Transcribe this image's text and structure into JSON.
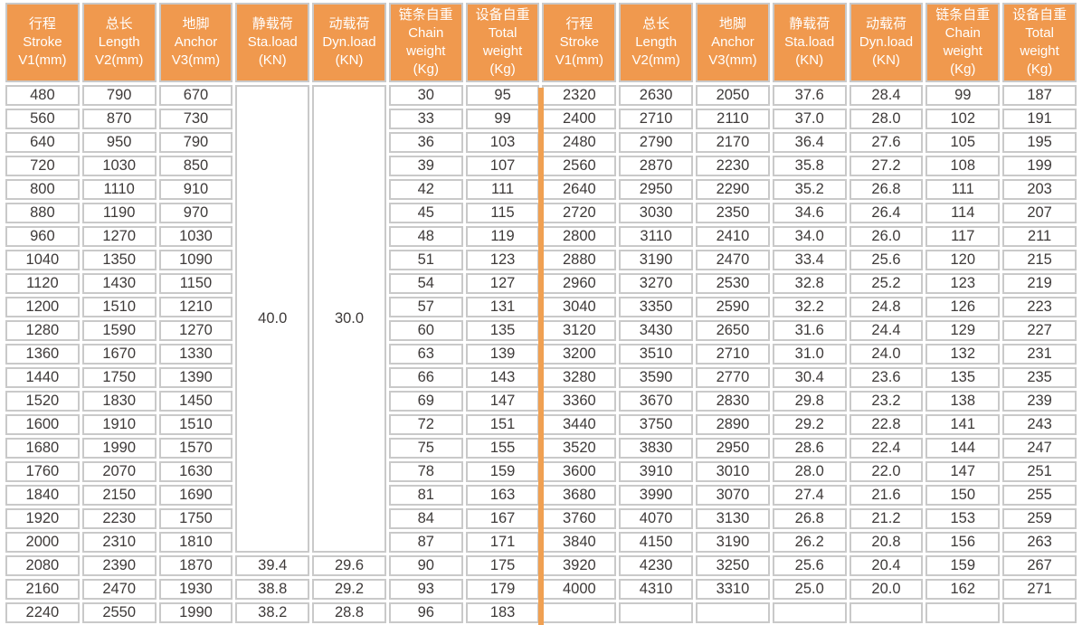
{
  "table": {
    "columns": [
      {
        "name": "stroke",
        "lines": [
          "行程",
          "Stroke",
          "V1(mm)"
        ]
      },
      {
        "name": "length",
        "lines": [
          "总长",
          "Length",
          "V2(mm)"
        ]
      },
      {
        "name": "anchor",
        "lines": [
          "地脚",
          "Anchor",
          "V3(mm)"
        ]
      },
      {
        "name": "static-load",
        "lines": [
          "静载荷",
          "Sta.load",
          "(KN)"
        ]
      },
      {
        "name": "dynamic-load",
        "lines": [
          "动载荷",
          "Dyn.load",
          "(KN)"
        ]
      },
      {
        "name": "chain-weight",
        "lines": [
          "链条自重",
          "Chain",
          "weight",
          "(Kg)"
        ]
      },
      {
        "name": "total-weight",
        "lines": [
          "设备自重",
          "Total",
          "weight",
          "(Kg)"
        ]
      }
    ],
    "left_merged": {
      "sta": "40.0",
      "dyn": "30.0",
      "rowspan": 20
    },
    "left_rows": [
      [
        "480",
        "790",
        "670",
        "",
        "",
        "30",
        "95"
      ],
      [
        "560",
        "870",
        "730",
        "",
        "",
        "33",
        "99"
      ],
      [
        "640",
        "950",
        "790",
        "",
        "",
        "36",
        "103"
      ],
      [
        "720",
        "1030",
        "850",
        "",
        "",
        "39",
        "107"
      ],
      [
        "800",
        "1110",
        "910",
        "",
        "",
        "42",
        "111"
      ],
      [
        "880",
        "1190",
        "970",
        "",
        "",
        "45",
        "115"
      ],
      [
        "960",
        "1270",
        "1030",
        "",
        "",
        "48",
        "119"
      ],
      [
        "1040",
        "1350",
        "1090",
        "",
        "",
        "51",
        "123"
      ],
      [
        "1120",
        "1430",
        "1150",
        "",
        "",
        "54",
        "127"
      ],
      [
        "1200",
        "1510",
        "1210",
        "",
        "",
        "57",
        "131"
      ],
      [
        "1280",
        "1590",
        "1270",
        "",
        "",
        "60",
        "135"
      ],
      [
        "1360",
        "1670",
        "1330",
        "",
        "",
        "63",
        "139"
      ],
      [
        "1440",
        "1750",
        "1390",
        "",
        "",
        "66",
        "143"
      ],
      [
        "1520",
        "1830",
        "1450",
        "",
        "",
        "69",
        "147"
      ],
      [
        "1600",
        "1910",
        "1510",
        "",
        "",
        "72",
        "151"
      ],
      [
        "1680",
        "1990",
        "1570",
        "",
        "",
        "75",
        "155"
      ],
      [
        "1760",
        "2070",
        "1630",
        "",
        "",
        "78",
        "159"
      ],
      [
        "1840",
        "2150",
        "1690",
        "",
        "",
        "81",
        "163"
      ],
      [
        "1920",
        "2230",
        "1750",
        "",
        "",
        "84",
        "167"
      ],
      [
        "2000",
        "2310",
        "1810",
        "",
        "",
        "87",
        "171"
      ],
      [
        "2080",
        "2390",
        "1870",
        "39.4",
        "29.6",
        "90",
        "175"
      ],
      [
        "2160",
        "2470",
        "1930",
        "38.8",
        "29.2",
        "93",
        "179"
      ],
      [
        "2240",
        "2550",
        "1990",
        "38.2",
        "28.8",
        "96",
        "183"
      ]
    ],
    "right_rows": [
      [
        "2320",
        "2630",
        "2050",
        "37.6",
        "28.4",
        "99",
        "187"
      ],
      [
        "2400",
        "2710",
        "2110",
        "37.0",
        "28.0",
        "102",
        "191"
      ],
      [
        "2480",
        "2790",
        "2170",
        "36.4",
        "27.6",
        "105",
        "195"
      ],
      [
        "2560",
        "2870",
        "2230",
        "35.8",
        "27.2",
        "108",
        "199"
      ],
      [
        "2640",
        "2950",
        "2290",
        "35.2",
        "26.8",
        "111",
        "203"
      ],
      [
        "2720",
        "3030",
        "2350",
        "34.6",
        "26.4",
        "114",
        "207"
      ],
      [
        "2800",
        "3110",
        "2410",
        "34.0",
        "26.0",
        "117",
        "211"
      ],
      [
        "2880",
        "3190",
        "2470",
        "33.4",
        "25.6",
        "120",
        "215"
      ],
      [
        "2960",
        "3270",
        "2530",
        "32.8",
        "25.2",
        "123",
        "219"
      ],
      [
        "3040",
        "3350",
        "2590",
        "32.2",
        "24.8",
        "126",
        "223"
      ],
      [
        "3120",
        "3430",
        "2650",
        "31.6",
        "24.4",
        "129",
        "227"
      ],
      [
        "3200",
        "3510",
        "2710",
        "31.0",
        "24.0",
        "132",
        "231"
      ],
      [
        "3280",
        "3590",
        "2770",
        "30.4",
        "23.6",
        "135",
        "235"
      ],
      [
        "3360",
        "3670",
        "2830",
        "29.8",
        "23.2",
        "138",
        "239"
      ],
      [
        "3440",
        "3750",
        "2890",
        "29.2",
        "22.8",
        "141",
        "243"
      ],
      [
        "3520",
        "3830",
        "2950",
        "28.6",
        "22.4",
        "144",
        "247"
      ],
      [
        "3600",
        "3910",
        "3010",
        "28.0",
        "22.0",
        "147",
        "251"
      ],
      [
        "3680",
        "3990",
        "3070",
        "27.4",
        "21.6",
        "150",
        "255"
      ],
      [
        "3760",
        "4070",
        "3130",
        "26.8",
        "21.2",
        "153",
        "259"
      ],
      [
        "3840",
        "4150",
        "3190",
        "26.2",
        "20.8",
        "156",
        "263"
      ],
      [
        "3920",
        "4230",
        "3250",
        "25.6",
        "20.4",
        "159",
        "267"
      ],
      [
        "4000",
        "4310",
        "3310",
        "25.0",
        "20.0",
        "162",
        "271"
      ],
      [
        "",
        "",
        "",
        "",
        "",
        "",
        ""
      ]
    ],
    "total_row_slots": 24
  },
  "colors": {
    "header_orange": "#F0994E",
    "divider_orange": "#F0A052",
    "grid_gray": "#c9c9c9",
    "text_dark": "#3e3a39",
    "cell_white": "#ffffff"
  }
}
